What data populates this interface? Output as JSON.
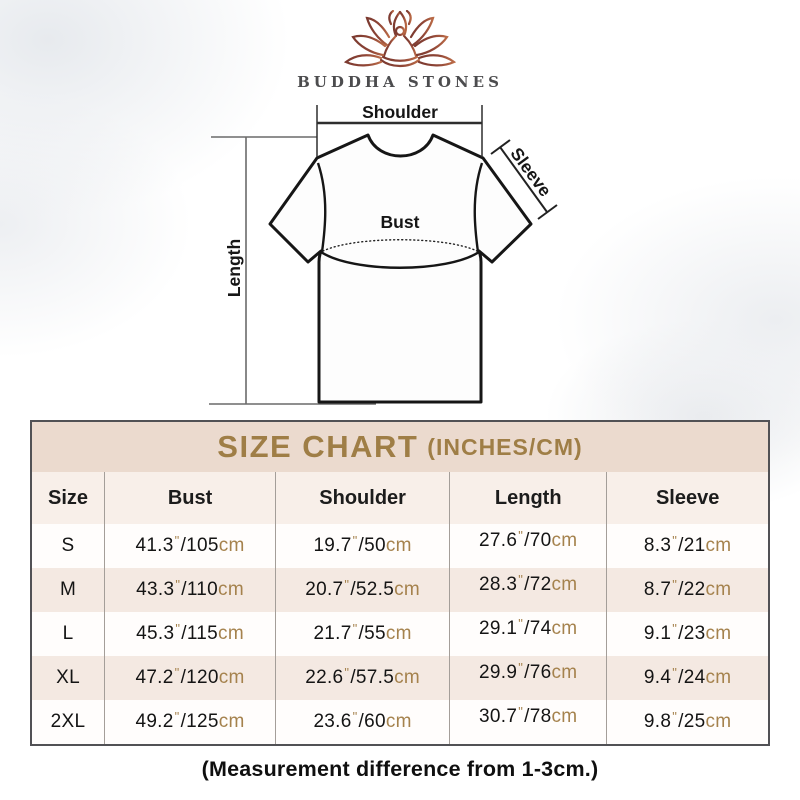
{
  "brand": {
    "name": "BUDDHA STONES"
  },
  "diagram": {
    "shoulder_label": "Shoulder",
    "sleeve_label": "Sleeve",
    "bust_label": "Bust",
    "length_label": "Length"
  },
  "size_chart": {
    "title": "SIZE CHART",
    "title_suffix": "(INCHES/CM)",
    "columns": [
      "Size",
      "Bust",
      "Shoulder",
      "Length",
      "Sleeve"
    ],
    "units": {
      "inch_mark": "\"",
      "separator": "/",
      "cm": "cm"
    },
    "rows": [
      {
        "size": "S",
        "bust": {
          "in": "41.3",
          "cm": "105"
        },
        "shoulder": {
          "in": "19.7",
          "cm": "50"
        },
        "length": {
          "in": "27.6",
          "cm": "70"
        },
        "sleeve": {
          "in": "8.3",
          "cm": "21"
        }
      },
      {
        "size": "M",
        "bust": {
          "in": "43.3",
          "cm": "110"
        },
        "shoulder": {
          "in": "20.7",
          "cm": "52.5"
        },
        "length": {
          "in": "28.3",
          "cm": "72"
        },
        "sleeve": {
          "in": "8.7",
          "cm": "22"
        }
      },
      {
        "size": "L",
        "bust": {
          "in": "45.3",
          "cm": "115"
        },
        "shoulder": {
          "in": "21.7",
          "cm": "55"
        },
        "length": {
          "in": "29.1",
          "cm": "74"
        },
        "sleeve": {
          "in": "9.1",
          "cm": "23"
        }
      },
      {
        "size": "XL",
        "bust": {
          "in": "47.2",
          "cm": "120"
        },
        "shoulder": {
          "in": "22.6",
          "cm": "57.5"
        },
        "length": {
          "in": "29.9",
          "cm": "76"
        },
        "sleeve": {
          "in": "9.4",
          "cm": "24"
        }
      },
      {
        "size": "2XL",
        "bust": {
          "in": "49.2",
          "cm": "125"
        },
        "shoulder": {
          "in": "23.6",
          "cm": "60"
        },
        "length": {
          "in": "30.7",
          "cm": "78"
        },
        "sleeve": {
          "in": "9.8",
          "cm": "25"
        }
      }
    ]
  },
  "footnote": "(Measurement difference from 1-3cm.)",
  "colors": {
    "accent_gold": "#9f7e46",
    "unit_tan": "#a5824d",
    "title_band_bg": "#ebdace",
    "header_row_bg": "#f8efe9",
    "stripe_row_bg": "#f4e9e2",
    "logo_brown_dark": "#7b3a30",
    "logo_brown_light": "#bb6b47"
  },
  "chart_data": {
    "type": "table",
    "title": "SIZE CHART (INCHES/CM)",
    "columns": [
      "Size",
      "Bust",
      "Shoulder",
      "Length",
      "Sleeve"
    ],
    "rows": [
      [
        "S",
        "41.3\"/105cm",
        "19.7\"/50cm",
        "27.6\"/70cm",
        "8.3\"/21cm"
      ],
      [
        "M",
        "43.3\"/110cm",
        "20.7\"/52.5cm",
        "28.3\"/72cm",
        "8.7\"/22cm"
      ],
      [
        "L",
        "45.3\"/115cm",
        "21.7\"/55cm",
        "29.1\"/74cm",
        "9.1\"/23cm"
      ],
      [
        "XL",
        "47.2\"/120cm",
        "22.6\"/57.5cm",
        "29.9\"/76cm",
        "9.4\"/24cm"
      ],
      [
        "2XL",
        "49.2\"/125cm",
        "23.6\"/60cm",
        "30.7\"/78cm",
        "9.8\"/25cm"
      ]
    ],
    "footnote": "(Measurement difference from 1-3cm.)"
  }
}
